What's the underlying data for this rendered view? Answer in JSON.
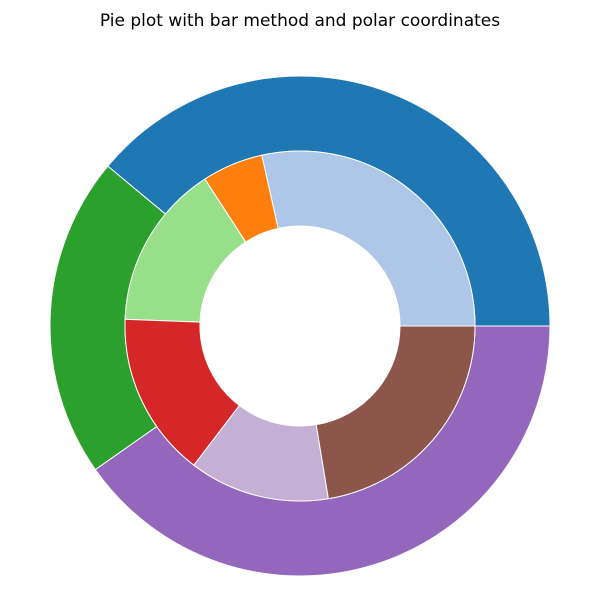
{
  "chart_data": {
    "type": "pie",
    "title": "Pie plot with bar method and polar coordinates",
    "outer_ring": {
      "values": [
        60,
        32,
        62
      ],
      "colors": [
        "#1f77b4",
        "#2ca02c",
        "#9467bd"
      ]
    },
    "inner_ring": {
      "values": [
        37.4,
        7.4,
        20,
        20,
        17,
        29.4
      ],
      "colors": [
        "#aec7e8",
        "#ff7f0e",
        "#98df8a",
        "#d62728",
        "#c5b0d5",
        "#8c564b"
      ]
    },
    "start_angle_deg": 0,
    "direction": "counterclockwise"
  }
}
